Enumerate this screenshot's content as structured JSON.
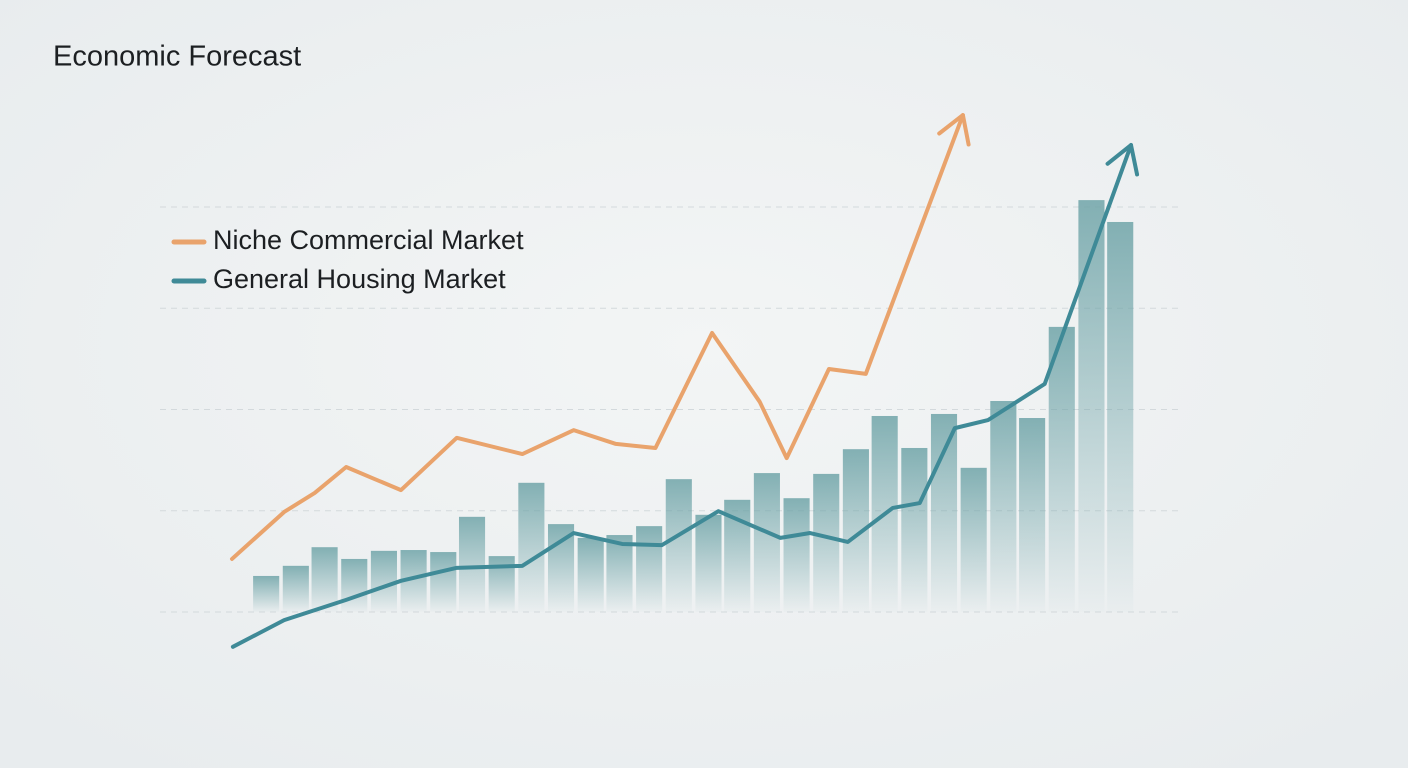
{
  "chart_data": {
    "type": "line",
    "title": "Economic Forecast",
    "xlim": [
      0,
      100
    ],
    "ylim": [
      -10,
      125
    ],
    "yticks": [
      0,
      25,
      50,
      75,
      100
    ],
    "grid": true,
    "show_tick_labels": false,
    "legend": "upper left",
    "arrow_end": true,
    "series": [
      {
        "type": "bar",
        "color": "#6fa4a8",
        "x": [
          3.8,
          7.1,
          10.3,
          13.6,
          16.9,
          20.2,
          23.5,
          26.7,
          30.0,
          33.3,
          36.6,
          39.9,
          43.1,
          46.4,
          49.7,
          53.0,
          56.2,
          59.5,
          62.8,
          66.1,
          69.4,
          72.6,
          75.9,
          79.2,
          82.5,
          85.8,
          89.0,
          92.3,
          95.6,
          98.8
        ],
        "values": [
          8.9,
          11.4,
          16.0,
          13.1,
          15.1,
          15.3,
          14.8,
          23.5,
          13.8,
          31.9,
          21.7,
          18.3,
          19.0,
          21.2,
          32.8,
          24.0,
          27.7,
          34.3,
          28.1,
          34.1,
          40.2,
          48.4,
          40.5,
          48.9,
          35.6,
          52.1,
          47.9,
          70.4,
          101.7,
          96.3
        ]
      },
      {
        "name": "Niche Commercial Market",
        "color": "#e9a36c",
        "x": [
          0,
          5.8,
          9.2,
          12.7,
          15.9,
          18.8,
          25.0,
          32.3,
          38.0,
          42.7,
          47.1,
          53.4,
          58.7,
          61.7,
          66.4,
          70.5,
          81.3
        ],
        "values": [
          13.1,
          24.7,
          29.4,
          35.8,
          32.8,
          30.1,
          43.0,
          39.0,
          44.9,
          41.5,
          40.5,
          68.9,
          51.9,
          38.0,
          60.0,
          58.8,
          122.7
        ]
      },
      {
        "name": "General Housing Market",
        "color": "#3f8a97",
        "x": [
          0.1,
          5.8,
          12.7,
          18.8,
          25.0,
          32.3,
          38.0,
          43.4,
          47.8,
          54.1,
          61.0,
          64.3,
          68.5,
          73.5,
          76.5,
          80.4,
          84.1,
          90.4,
          100
        ],
        "values": [
          -8.6,
          -2.0,
          3.0,
          7.7,
          10.9,
          11.4,
          19.5,
          16.8,
          16.5,
          24.9,
          18.3,
          19.5,
          17.3,
          25.7,
          26.9,
          45.4,
          47.4,
          56.3,
          115.3
        ]
      }
    ]
  }
}
